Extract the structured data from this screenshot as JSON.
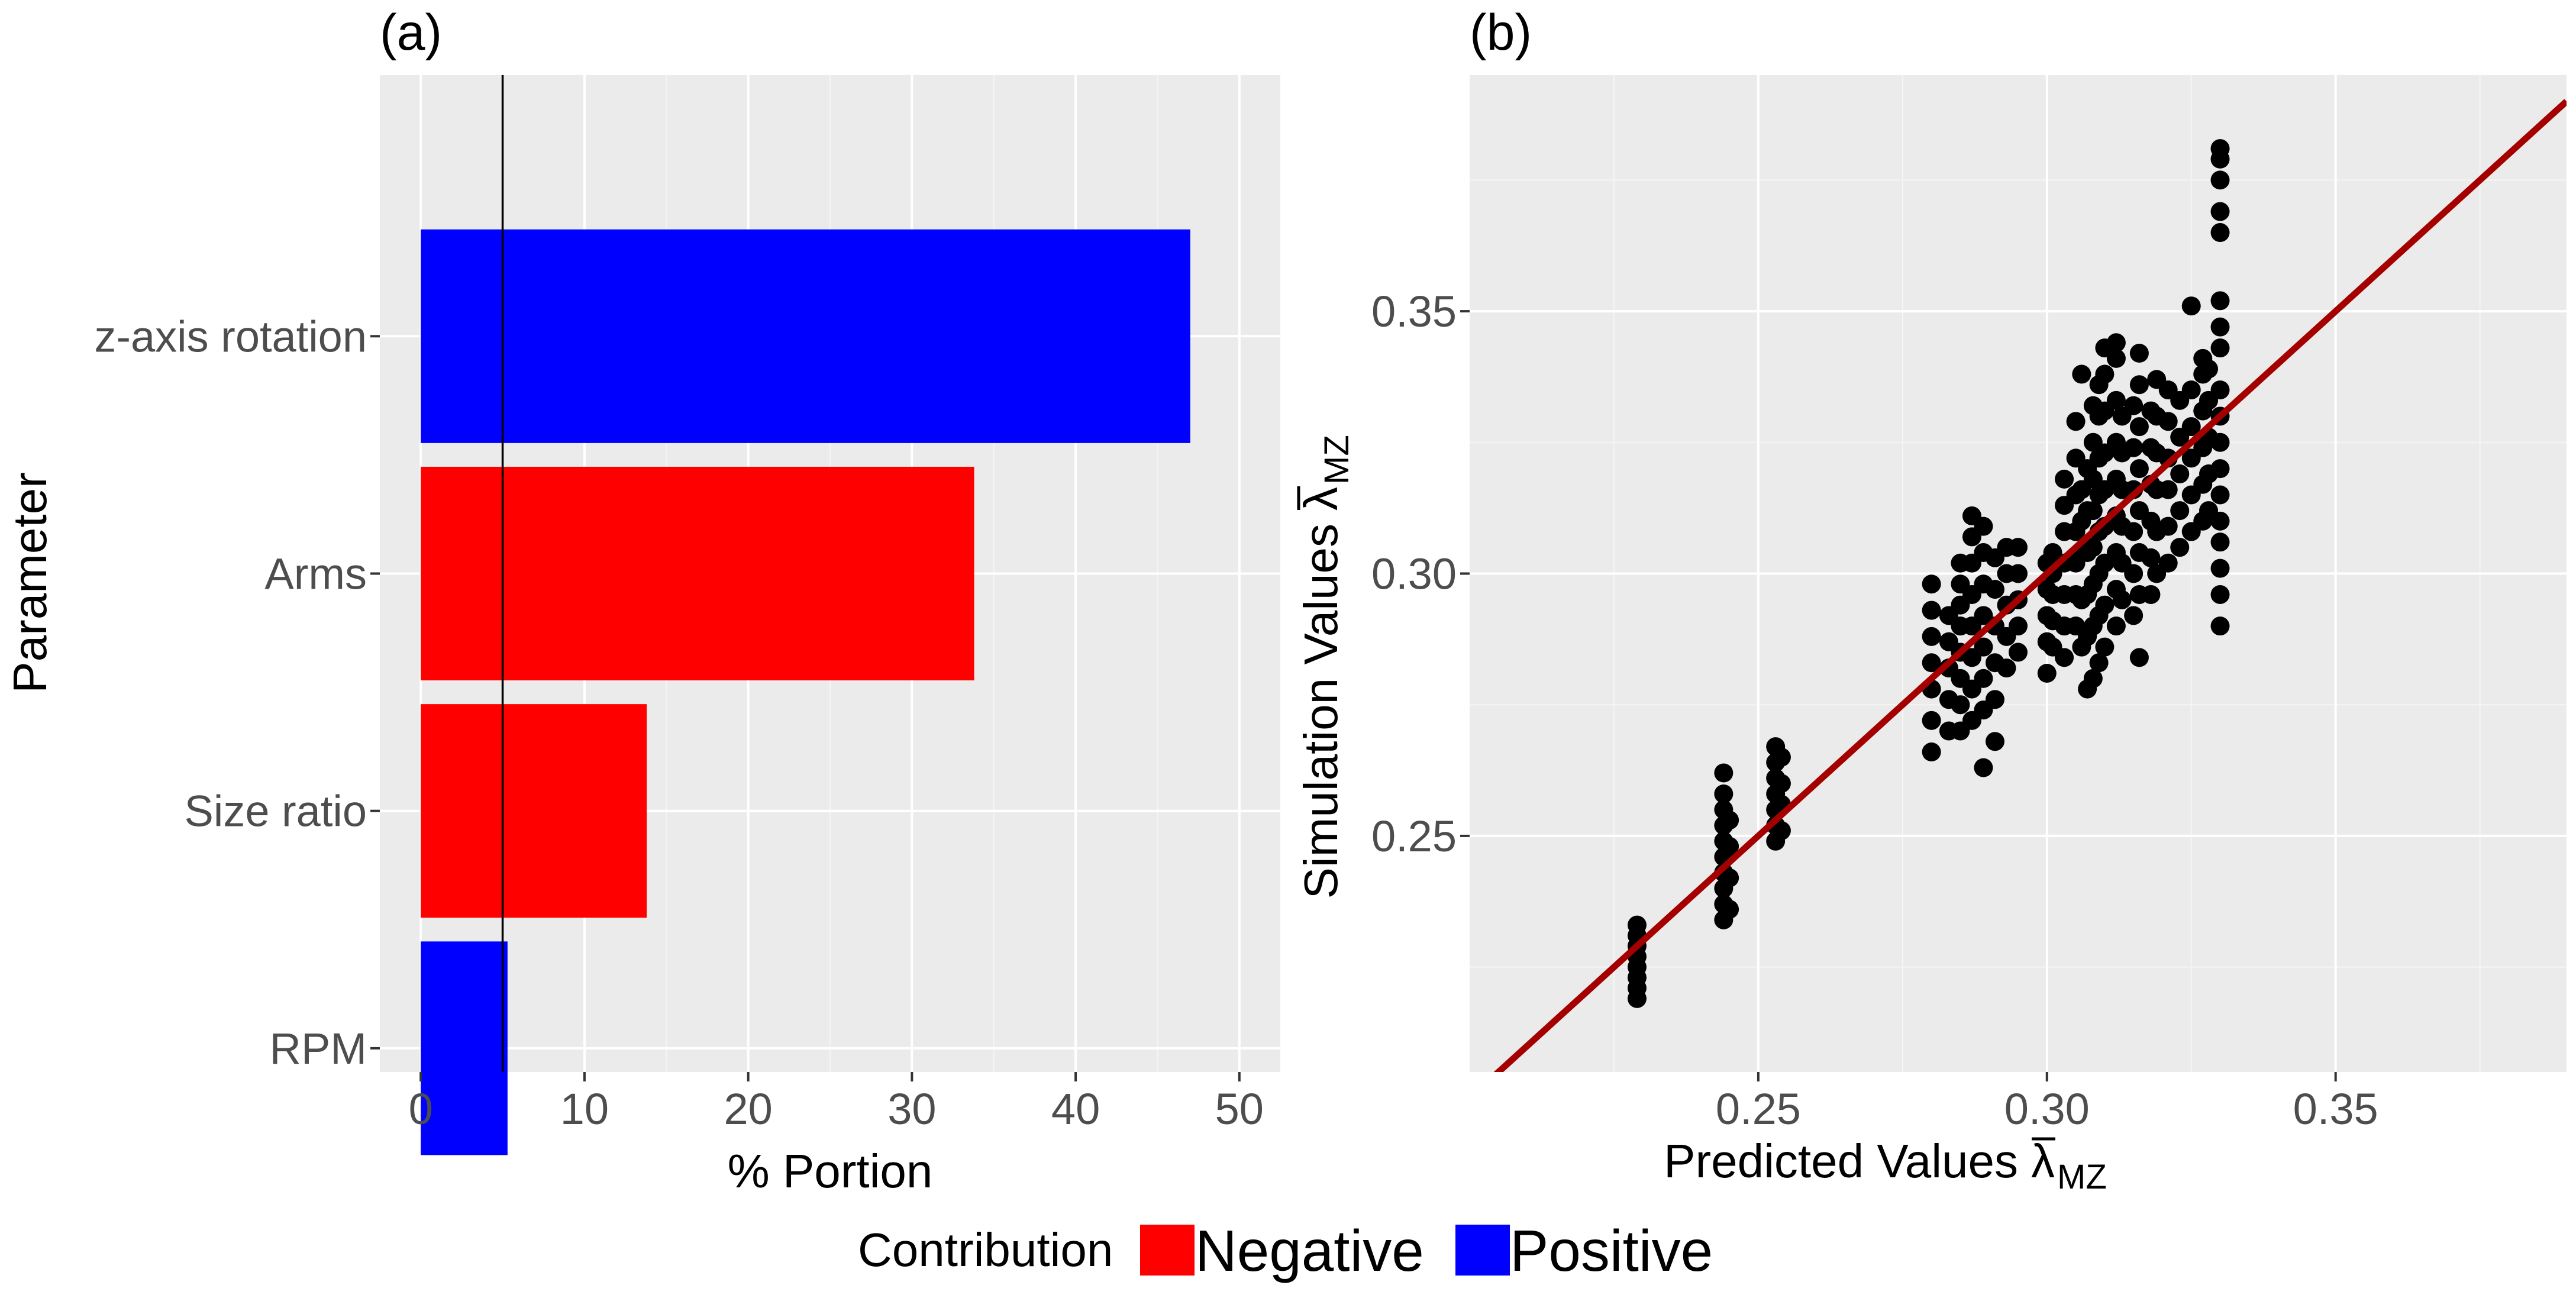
{
  "colors": {
    "negative": "#ff0000",
    "positive": "#0000ff",
    "points": "#000000",
    "fit_line": "#a50000",
    "panel_bg": "#ebebeb"
  },
  "chart_data": [
    {
      "type": "bar",
      "orientation": "horizontal",
      "panel_label": "(a)",
      "xlabel": "% Portion",
      "ylabel": "Parameter",
      "xlim": [
        -2.5,
        52.5
      ],
      "xticks": [
        0,
        10,
        20,
        30,
        40,
        50
      ],
      "xtick_labels": [
        "0",
        "10",
        "20",
        "30",
        "40",
        "50"
      ],
      "reference_line_x": 5,
      "grid": true,
      "categories": [
        "z-axis rotation",
        "Arms",
        "Size ratio",
        "RPM"
      ],
      "values": [
        47,
        33.8,
        13.8,
        5.3
      ],
      "contribution": [
        "Positive",
        "Negative",
        "Negative",
        "Positive"
      ]
    },
    {
      "type": "scatter",
      "panel_label": "(b)",
      "xlabel": "Predicted Values",
      "ylabel": "Simulation Values",
      "axis_symbol": "λ",
      "axis_subscript": "MZ",
      "xlim": [
        0.2,
        0.39
      ],
      "ylim": [
        0.205,
        0.395
      ],
      "xticks": [
        0.25,
        0.3,
        0.35
      ],
      "xtick_labels": [
        "0.25",
        "0.30",
        "0.35"
      ],
      "yticks": [
        0.25,
        0.3,
        0.35
      ],
      "ytick_labels": [
        "0.25",
        "0.30",
        "0.35"
      ],
      "grid": true,
      "fit_line": {
        "slope": 1,
        "intercept": 0
      },
      "clusters": [
        {
          "x": 0.229,
          "ys": [
            0.219,
            0.221,
            0.223,
            0.225,
            0.227,
            0.229,
            0.231,
            0.233
          ]
        },
        {
          "x": 0.244,
          "ys": [
            0.234,
            0.237,
            0.24,
            0.243,
            0.246,
            0.249,
            0.252,
            0.255,
            0.258,
            0.262
          ]
        },
        {
          "x": 0.245,
          "ys": [
            0.236,
            0.242,
            0.248,
            0.253
          ]
        },
        {
          "x": 0.253,
          "ys": [
            0.249,
            0.252,
            0.255,
            0.258,
            0.261,
            0.264,
            0.267
          ]
        },
        {
          "x": 0.254,
          "ys": [
            0.251,
            0.256,
            0.26,
            0.265
          ]
        },
        {
          "x": 0.28,
          "ys": [
            0.266,
            0.272,
            0.278,
            0.283,
            0.288,
            0.293,
            0.298
          ]
        },
        {
          "x": 0.283,
          "ys": [
            0.27,
            0.276,
            0.282,
            0.287,
            0.292
          ]
        },
        {
          "x": 0.285,
          "ys": [
            0.27,
            0.275,
            0.28,
            0.285,
            0.29,
            0.294,
            0.298,
            0.302
          ]
        },
        {
          "x": 0.287,
          "ys": [
            0.272,
            0.278,
            0.284,
            0.29,
            0.296,
            0.302,
            0.307,
            0.311
          ]
        },
        {
          "x": 0.289,
          "ys": [
            0.263,
            0.274,
            0.28,
            0.286,
            0.292,
            0.298,
            0.304,
            0.309
          ]
        },
        {
          "x": 0.291,
          "ys": [
            0.268,
            0.276,
            0.283,
            0.29,
            0.297,
            0.303
          ]
        },
        {
          "x": 0.293,
          "ys": [
            0.282,
            0.288,
            0.294,
            0.3,
            0.305
          ]
        },
        {
          "x": 0.295,
          "ys": [
            0.285,
            0.29,
            0.295,
            0.3,
            0.305
          ]
        },
        {
          "x": 0.3,
          "ys": [
            0.281,
            0.287,
            0.292,
            0.297,
            0.302
          ]
        },
        {
          "x": 0.301,
          "ys": [
            0.286,
            0.291,
            0.296,
            0.3,
            0.304
          ]
        },
        {
          "x": 0.303,
          "ys": [
            0.284,
            0.29,
            0.296,
            0.302,
            0.308,
            0.313,
            0.318
          ]
        },
        {
          "x": 0.305,
          "ys": [
            0.29,
            0.296,
            0.302,
            0.308,
            0.315,
            0.322,
            0.329
          ]
        },
        {
          "x": 0.306,
          "ys": [
            0.286,
            0.295,
            0.304,
            0.31,
            0.316,
            0.338
          ]
        },
        {
          "x": 0.307,
          "ys": [
            0.278,
            0.288,
            0.296,
            0.304,
            0.312,
            0.32
          ]
        },
        {
          "x": 0.308,
          "ys": [
            0.28,
            0.29,
            0.298,
            0.305,
            0.312,
            0.318,
            0.325,
            0.332
          ]
        },
        {
          "x": 0.309,
          "ys": [
            0.283,
            0.292,
            0.3,
            0.308,
            0.315,
            0.322,
            0.33,
            0.336
          ]
        },
        {
          "x": 0.31,
          "ys": [
            0.286,
            0.294,
            0.302,
            0.309,
            0.316,
            0.323,
            0.331,
            0.338,
            0.343
          ]
        },
        {
          "x": 0.312,
          "ys": [
            0.29,
            0.297,
            0.304,
            0.311,
            0.318,
            0.325,
            0.333,
            0.341,
            0.344
          ]
        },
        {
          "x": 0.313,
          "ys": [
            0.295,
            0.302,
            0.309,
            0.316,
            0.323,
            0.33
          ]
        },
        {
          "x": 0.315,
          "ys": [
            0.292,
            0.3,
            0.308,
            0.316,
            0.324,
            0.332
          ]
        },
        {
          "x": 0.316,
          "ys": [
            0.284,
            0.296,
            0.304,
            0.312,
            0.32,
            0.328,
            0.336,
            0.342
          ]
        },
        {
          "x": 0.318,
          "ys": [
            0.296,
            0.303,
            0.31,
            0.317,
            0.324,
            0.331
          ]
        },
        {
          "x": 0.319,
          "ys": [
            0.3,
            0.308,
            0.316,
            0.323,
            0.33,
            0.337
          ]
        },
        {
          "x": 0.321,
          "ys": [
            0.302,
            0.309,
            0.316,
            0.322,
            0.329,
            0.335
          ]
        },
        {
          "x": 0.323,
          "ys": [
            0.305,
            0.312,
            0.319,
            0.326,
            0.333
          ]
        },
        {
          "x": 0.325,
          "ys": [
            0.308,
            0.315,
            0.322,
            0.328,
            0.335,
            0.351
          ]
        },
        {
          "x": 0.327,
          "ys": [
            0.31,
            0.317,
            0.324,
            0.331,
            0.338,
            0.341
          ]
        },
        {
          "x": 0.328,
          "ys": [
            0.312,
            0.319,
            0.326,
            0.333,
            0.339
          ]
        },
        {
          "x": 0.33,
          "ys": [
            0.29,
            0.296,
            0.301,
            0.306,
            0.31,
            0.315,
            0.32,
            0.325,
            0.33,
            0.335,
            0.343,
            0.347,
            0.352,
            0.365,
            0.369,
            0.375,
            0.379,
            0.381
          ]
        }
      ]
    }
  ],
  "legend": {
    "title": "Contribution",
    "entries": [
      {
        "label": "Negative",
        "color_key": "negative"
      },
      {
        "label": "Positive",
        "color_key": "positive"
      }
    ]
  }
}
